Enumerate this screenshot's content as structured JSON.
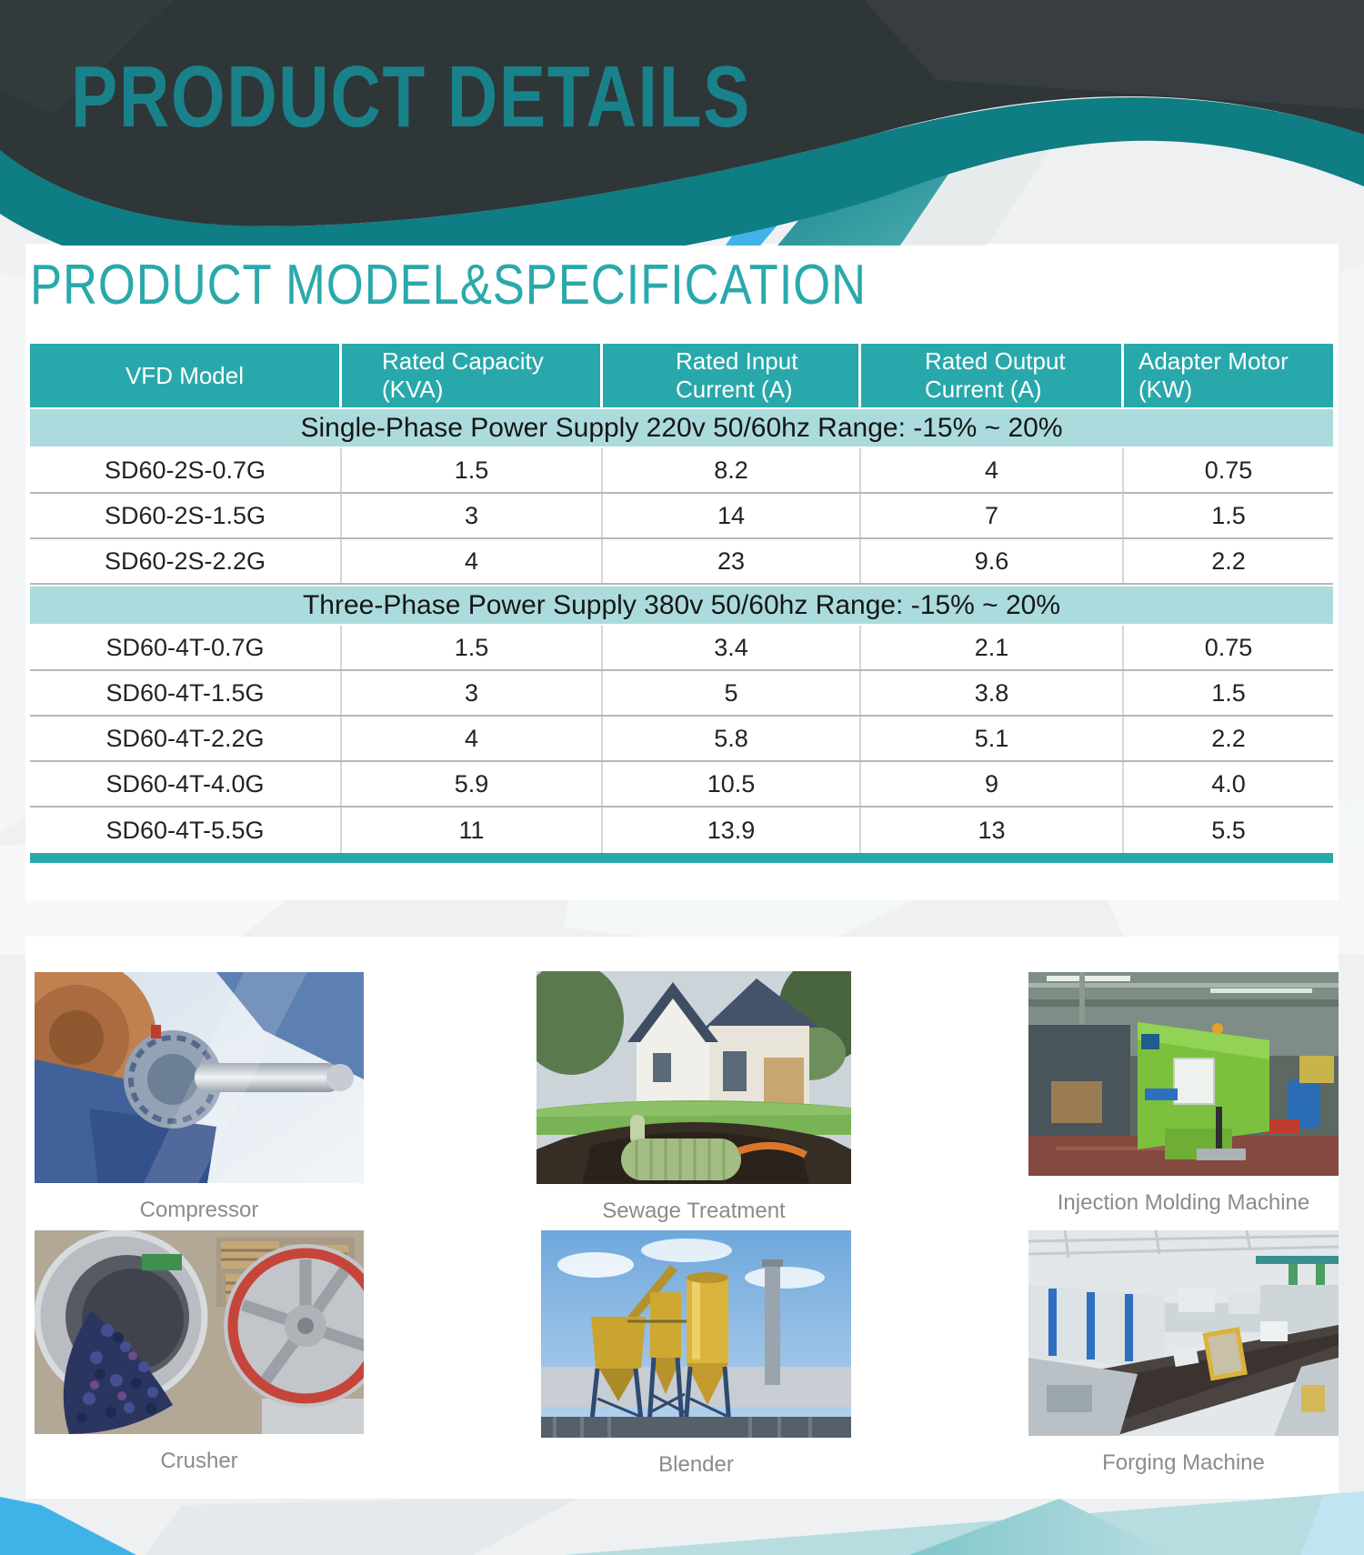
{
  "header": {
    "title": "PRODUCT DETAILS"
  },
  "section": {
    "title": "PRODUCT MODEL&SPECIFICATION"
  },
  "table": {
    "columns": [
      "VFD Model",
      "Rated Capacity (KVA)",
      "Rated Input Current (A)",
      "Rated Output Current (A)",
      "Adapter Motor (KW)"
    ],
    "sections": [
      {
        "band": "Single-Phase Power Supply 220v 50/60hz Range: -15% ~ 20%",
        "rows": [
          [
            "SD60-2S-0.7G",
            "1.5",
            "8.2",
            "4",
            "0.75"
          ],
          [
            "SD60-2S-1.5G",
            "3",
            "14",
            "7",
            "1.5"
          ],
          [
            "SD60-2S-2.2G",
            "4",
            "23",
            "9.6",
            "2.2"
          ]
        ]
      },
      {
        "band": "Three-Phase Power Supply 380v 50/60hz Range: -15% ~ 20%",
        "rows": [
          [
            "SD60-4T-0.7G",
            "1.5",
            "3.4",
            "2.1",
            "0.75"
          ],
          [
            "SD60-4T-1.5G",
            "3",
            "5",
            "3.8",
            "1.5"
          ],
          [
            "SD60-4T-2.2G",
            "4",
            "5.8",
            "5.1",
            "2.2"
          ],
          [
            "SD60-4T-4.0G",
            "5.9",
            "10.5",
            "9",
            "4.0"
          ],
          [
            "SD60-4T-5.5G",
            "11",
            "13.9",
            "13",
            "5.5"
          ]
        ]
      }
    ]
  },
  "gallery": {
    "items": [
      {
        "caption": "Compressor",
        "illustration": "compressor-photo"
      },
      {
        "caption": "Sewage Treatment",
        "illustration": "sewage-treatment-photo"
      },
      {
        "caption": "Injection Molding Machine",
        "illustration": "injection-molding-machine-photo"
      },
      {
        "caption": "Crusher",
        "illustration": "crusher-photo"
      },
      {
        "caption": "Blender",
        "illustration": "blender-photo"
      },
      {
        "caption": "Forging Machine",
        "illustration": "forging-machine-photo"
      }
    ]
  },
  "colors": {
    "brand_teal": "#29a8ab",
    "wave_teal": "#0e7d84",
    "header_dark": "#2f3637",
    "band_light_teal": "#abdbdd",
    "accent_blue": "#41b3e6",
    "title_teal": "#19818a",
    "caption_gray": "#8b8b8b"
  }
}
